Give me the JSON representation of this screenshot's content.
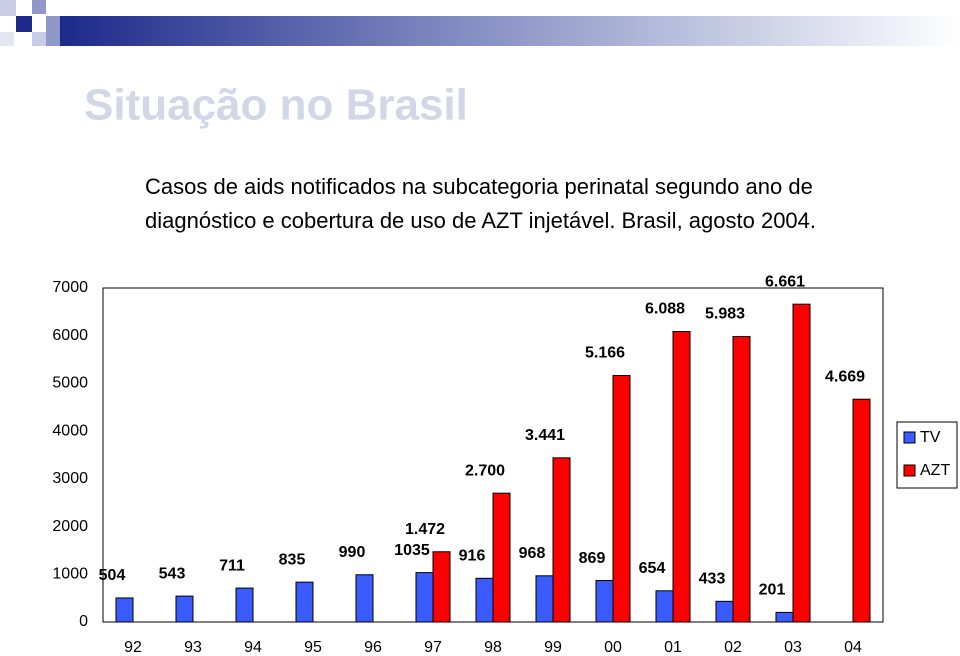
{
  "heading": "Situação no Brasil",
  "chart_data": {
    "type": "bar",
    "title": [
      "Casos de aids notificados na subcategoria perinatal segundo ano de",
      "diagnóstico e cobertura de uso de AZT injetável. Brasil, agosto 2004."
    ],
    "categories": [
      "92",
      "93",
      "94",
      "95",
      "96",
      "97",
      "98",
      "99",
      "00",
      "01",
      "02",
      "03",
      "04"
    ],
    "series": [
      {
        "name": "TV",
        "color": "#3a5cff",
        "values": [
          504,
          543,
          711,
          835,
          990,
          1035,
          916,
          968,
          869,
          654,
          433,
          201,
          null
        ]
      },
      {
        "name": "AZT",
        "color": "#ff0000",
        "values": [
          null,
          null,
          null,
          null,
          null,
          1472,
          2700,
          3441,
          5166,
          6088,
          5983,
          6661,
          4669
        ],
        "value_labels": [
          null,
          null,
          null,
          null,
          null,
          "1.472",
          "2.700",
          "3.441",
          "5.166",
          "6.088",
          "5.983",
          "6.661",
          "4.669"
        ]
      }
    ],
    "ylim": [
      0,
      7000
    ],
    "yticks": [
      0,
      1000,
      2000,
      3000,
      4000,
      5000,
      6000,
      7000
    ],
    "grid": false,
    "legend": "right"
  }
}
